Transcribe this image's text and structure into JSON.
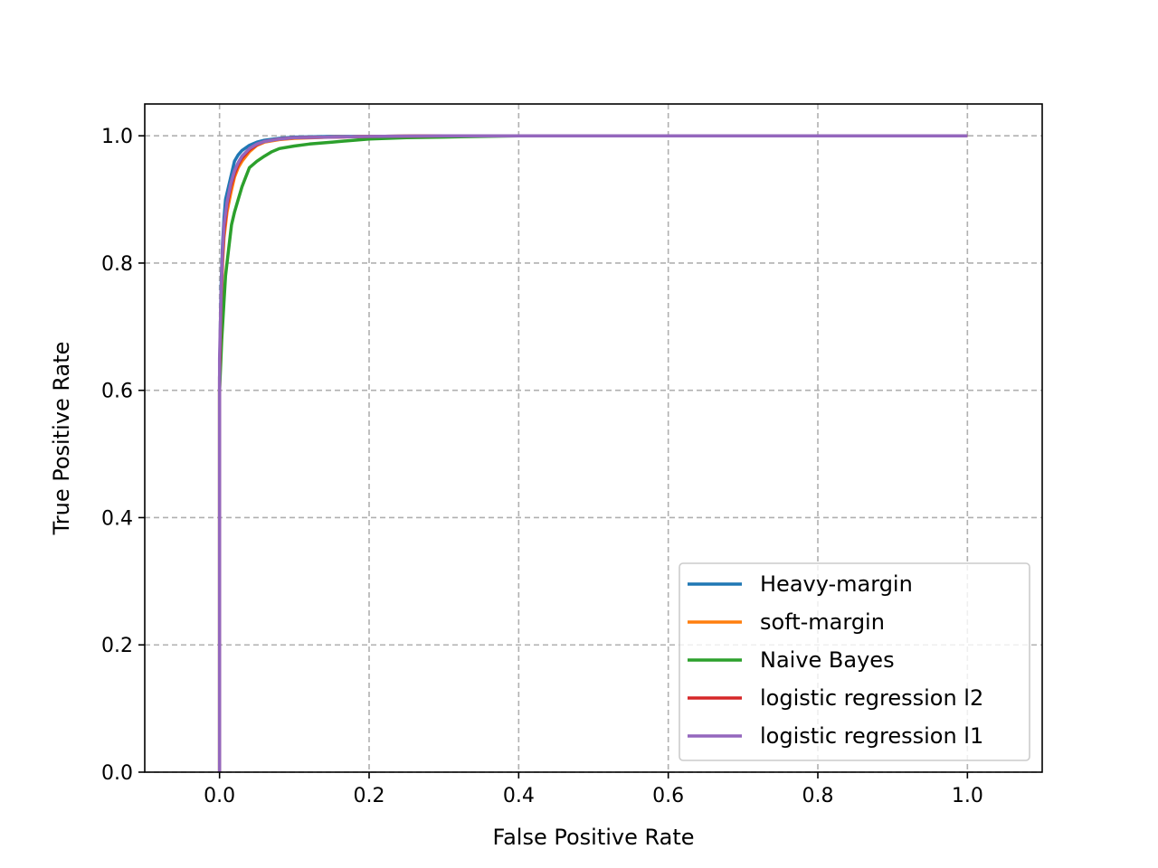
{
  "chart_data": {
    "type": "line",
    "title": "",
    "xlabel": "False Positive Rate",
    "ylabel": "True Positive Rate",
    "xlim": [
      -0.1,
      1.1
    ],
    "ylim": [
      0.0,
      1.05
    ],
    "xticks": [
      0.0,
      0.2,
      0.4,
      0.6,
      0.8,
      1.0
    ],
    "yticks": [
      0.0,
      0.2,
      0.4,
      0.6,
      0.8,
      1.0
    ],
    "xtick_labels": [
      "0.0",
      "0.2",
      "0.4",
      "0.6",
      "0.8",
      "1.0"
    ],
    "ytick_labels": [
      "0.0",
      "0.2",
      "0.4",
      "0.6",
      "0.8",
      "1.0"
    ],
    "grid": true,
    "legend_position": "lower-right",
    "series": [
      {
        "name": "Heavy-margin",
        "color": "#1f77b4",
        "x": [
          0.0,
          0.0,
          0.002,
          0.004,
          0.006,
          0.008,
          0.012,
          0.016,
          0.02,
          0.025,
          0.03,
          0.04,
          0.05,
          0.06,
          0.08,
          0.1,
          0.15,
          0.2,
          0.3,
          0.5,
          1.0
        ],
        "y": [
          0.0,
          0.62,
          0.76,
          0.83,
          0.87,
          0.9,
          0.92,
          0.94,
          0.96,
          0.97,
          0.977,
          0.985,
          0.99,
          0.993,
          0.996,
          0.998,
          0.999,
          0.999,
          1.0,
          1.0,
          1.0
        ]
      },
      {
        "name": "soft-margin",
        "color": "#ff7f0e",
        "x": [
          0.0,
          0.0,
          0.002,
          0.004,
          0.006,
          0.01,
          0.015,
          0.02,
          0.025,
          0.03,
          0.04,
          0.05,
          0.06,
          0.08,
          0.1,
          0.15,
          0.2,
          0.3,
          0.5,
          1.0
        ],
        "y": [
          0.0,
          0.6,
          0.72,
          0.8,
          0.84,
          0.88,
          0.91,
          0.935,
          0.95,
          0.96,
          0.975,
          0.985,
          0.99,
          0.994,
          0.996,
          0.998,
          0.999,
          1.0,
          1.0,
          1.0
        ]
      },
      {
        "name": "Naive Bayes",
        "color": "#2ca02c",
        "x": [
          0.0,
          0.0,
          0.003,
          0.006,
          0.008,
          0.01,
          0.013,
          0.016,
          0.02,
          0.025,
          0.03,
          0.035,
          0.04,
          0.05,
          0.06,
          0.07,
          0.08,
          0.1,
          0.12,
          0.15,
          0.18,
          0.2,
          0.25,
          0.3,
          0.35,
          0.4,
          0.5,
          1.0
        ],
        "y": [
          0.0,
          0.6,
          0.68,
          0.74,
          0.78,
          0.8,
          0.83,
          0.86,
          0.88,
          0.9,
          0.92,
          0.935,
          0.95,
          0.96,
          0.968,
          0.975,
          0.98,
          0.984,
          0.987,
          0.99,
          0.993,
          0.995,
          0.997,
          0.998,
          0.999,
          1.0,
          1.0,
          1.0
        ]
      },
      {
        "name": "logistic regression l2",
        "color": "#d62728",
        "x": [
          0.0,
          0.0,
          0.002,
          0.004,
          0.006,
          0.01,
          0.015,
          0.02,
          0.025,
          0.03,
          0.04,
          0.05,
          0.06,
          0.08,
          0.1,
          0.15,
          0.2,
          0.3,
          0.5,
          1.0
        ],
        "y": [
          0.0,
          0.62,
          0.74,
          0.81,
          0.85,
          0.89,
          0.92,
          0.94,
          0.955,
          0.965,
          0.978,
          0.986,
          0.991,
          0.995,
          0.997,
          0.998,
          0.999,
          1.0,
          1.0,
          1.0
        ]
      },
      {
        "name": "logistic regression l1",
        "color": "#9467bd",
        "x": [
          0.0,
          0.0,
          0.002,
          0.004,
          0.006,
          0.01,
          0.015,
          0.02,
          0.025,
          0.03,
          0.04,
          0.05,
          0.06,
          0.08,
          0.1,
          0.15,
          0.2,
          0.3,
          0.5,
          1.0
        ],
        "y": [
          0.0,
          0.65,
          0.75,
          0.82,
          0.86,
          0.895,
          0.925,
          0.945,
          0.958,
          0.968,
          0.98,
          0.987,
          0.991,
          0.995,
          0.997,
          0.998,
          0.999,
          1.0,
          1.0,
          1.0
        ]
      }
    ]
  }
}
